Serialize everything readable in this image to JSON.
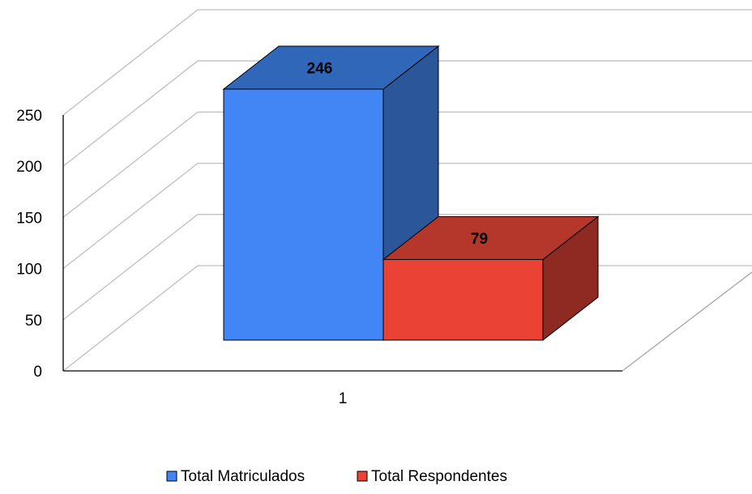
{
  "chart_data": {
    "type": "bar",
    "style": "3d-clustered-column",
    "categories": [
      "1"
    ],
    "series": [
      {
        "name": "Total Matriculados",
        "values": [
          246
        ],
        "color": "#4285F4",
        "side_color": "#2B579A",
        "top_color": "#3167B8"
      },
      {
        "name": "Total Respondentes",
        "values": [
          79
        ],
        "color": "#EA4335",
        "side_color": "#8E2A21",
        "top_color": "#B5362B"
      }
    ],
    "ylim": [
      0,
      250
    ],
    "yticks": [
      "0",
      "50",
      "100",
      "150",
      "200",
      "250"
    ],
    "data_labels": [
      "246",
      "79"
    ],
    "grid": true,
    "legend": "bottom"
  }
}
